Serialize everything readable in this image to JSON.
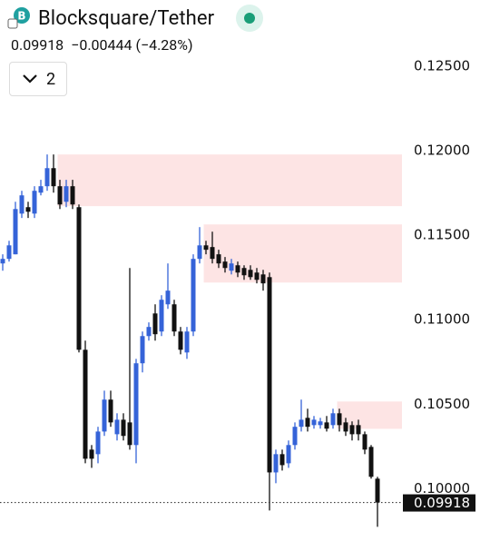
{
  "header": {
    "title": "Blocksquare/Tether",
    "change": "−0.00444 (−4.28%)",
    "layout_count": "2"
  },
  "chart_data": {
    "type": "candlestick",
    "up_color": "#3563d8",
    "down_color": "#111111",
    "ylim": [
      0.0969,
      0.1257
    ],
    "yticks": [
      {
        "value": 0.125,
        "label": "0.12500"
      },
      {
        "value": 0.12,
        "label": "0.12000"
      },
      {
        "value": 0.115,
        "label": "0.11500"
      },
      {
        "value": 0.11,
        "label": "0.11000"
      },
      {
        "value": 0.105,
        "label": "0.10500"
      },
      {
        "value": 0.1,
        "label": "0.10000"
      }
    ],
    "last_price": 0.09918,
    "zones": [
      {
        "start": 9,
        "top": 0.11978,
        "bottom": 0.11672,
        "color": "#fde4e4"
      },
      {
        "start": 32,
        "top": 0.11564,
        "bottom": 0.1122,
        "color": "#fde4e4"
      },
      {
        "start": 53,
        "top": 0.10516,
        "bottom": 0.10354,
        "color": "#fde4e4"
      }
    ],
    "candles": [
      [
        0.11333,
        0.11387,
        0.1129,
        0.1136
      ],
      [
        0.1136,
        0.11467,
        0.11344,
        0.1144
      ],
      [
        0.11387,
        0.11698,
        0.11387,
        0.11655
      ],
      [
        0.11628,
        0.11763,
        0.11602,
        0.11736
      ],
      [
        0.11666,
        0.11698,
        0.11602,
        0.11639
      ],
      [
        0.11628,
        0.1179,
        0.11602,
        0.11763
      ],
      [
        0.11752,
        0.11828,
        0.11736,
        0.1179
      ],
      [
        0.1179,
        0.11978,
        0.11763,
        0.11897
      ],
      [
        0.11897,
        0.11978,
        0.11752,
        0.1179
      ],
      [
        0.1179,
        0.11828,
        0.11655,
        0.11682
      ],
      [
        0.11698,
        0.11828,
        0.11666,
        0.1179
      ],
      [
        0.1179,
        0.11828,
        0.11655,
        0.11682
      ],
      [
        0.11666,
        0.11682,
        0.10806,
        0.10822
      ],
      [
        0.10822,
        0.10876,
        0.1015,
        0.10177
      ],
      [
        0.10231,
        0.10258,
        0.10123,
        0.10177
      ],
      [
        0.10204,
        0.10366,
        0.1015,
        0.10338
      ],
      [
        0.10338,
        0.1058,
        0.10312,
        0.10527
      ],
      [
        0.10527,
        0.1058,
        0.10366,
        0.10392
      ],
      [
        0.10322,
        0.10446,
        0.10285,
        0.10408
      ],
      [
        0.10408,
        0.10446,
        0.10285,
        0.10312
      ],
      [
        0.10392,
        0.11306,
        0.10231,
        0.10258
      ],
      [
        0.10258,
        0.10768,
        0.1015,
        0.10742
      ],
      [
        0.10742,
        0.1093,
        0.10688,
        0.10903
      ],
      [
        0.10903,
        0.10984,
        0.10876,
        0.10957
      ],
      [
        0.11037,
        0.11091,
        0.10876,
        0.10914
      ],
      [
        0.1093,
        0.11145,
        0.10903,
        0.11118
      ],
      [
        0.11091,
        0.11333,
        0.11064,
        0.11172
      ],
      [
        0.11091,
        0.11118,
        0.10903,
        0.1093
      ],
      [
        0.1093,
        0.10957,
        0.10795,
        0.10822
      ],
      [
        0.10806,
        0.10957,
        0.10768,
        0.1093
      ],
      [
        0.1093,
        0.11387,
        0.10903,
        0.1136
      ],
      [
        0.1136,
        0.11548,
        0.11333,
        0.1144
      ],
      [
        0.1144,
        0.11467,
        0.11387,
        0.11414
      ],
      [
        0.1143,
        0.11521,
        0.11333,
        0.1136
      ],
      [
        0.11387,
        0.11414,
        0.11306,
        0.11333
      ],
      [
        0.11344,
        0.11371,
        0.11279,
        0.11306
      ],
      [
        0.1129,
        0.1136,
        0.11268,
        0.11333
      ],
      [
        0.11322,
        0.11344,
        0.11252,
        0.11279
      ],
      [
        0.11306,
        0.11322,
        0.11236,
        0.11263
      ],
      [
        0.11295,
        0.11322,
        0.11236,
        0.11252
      ],
      [
        0.11279,
        0.11306,
        0.11215,
        0.11236
      ],
      [
        0.11268,
        0.11295,
        0.11172,
        0.11215
      ],
      [
        0.11252,
        0.11279,
        0.09871,
        0.10096
      ],
      [
        0.10096,
        0.10231,
        0.10032,
        0.10204
      ],
      [
        0.10204,
        0.10231,
        0.10107,
        0.10139
      ],
      [
        0.1015,
        0.10285,
        0.10123,
        0.10258
      ],
      [
        0.10258,
        0.10392,
        0.10231,
        0.10366
      ],
      [
        0.10366,
        0.10527,
        0.10338,
        0.10408
      ],
      [
        0.10419,
        0.10473,
        0.10338,
        0.10366
      ],
      [
        0.10376,
        0.1043,
        0.10355,
        0.10408
      ],
      [
        0.10376,
        0.10419,
        0.10355,
        0.10398
      ],
      [
        0.10392,
        0.1043,
        0.10338,
        0.10355
      ],
      [
        0.10376,
        0.10473,
        0.10355,
        0.10446
      ],
      [
        0.10446,
        0.10473,
        0.10338,
        0.10376
      ],
      [
        0.10392,
        0.10419,
        0.10312,
        0.10338
      ],
      [
        0.10376,
        0.10398,
        0.10285,
        0.10322
      ],
      [
        0.10376,
        0.10408,
        0.10285,
        0.10322
      ],
      [
        0.10322,
        0.10338,
        0.10204,
        0.10231
      ],
      [
        0.10247,
        0.10258,
        0.10059,
        0.1007
      ],
      [
        0.10059,
        0.1007,
        0.09774,
        0.09918
      ]
    ]
  }
}
